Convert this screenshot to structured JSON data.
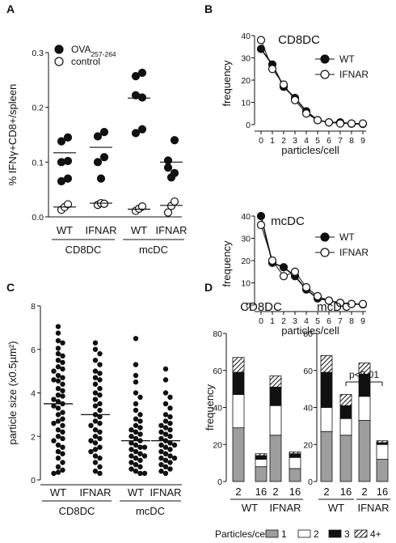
{
  "chart_data": [
    {
      "panel": "A",
      "type": "scatter",
      "ylabel": "% IFNγ+CD8+/spleen",
      "ylim": [
        0,
        0.3
      ],
      "yticks": [
        "0.0",
        "0.1",
        "0.2",
        "0.3"
      ],
      "legend": [
        {
          "name": "OVA",
          "sub": "257-264",
          "marker": "filled"
        },
        {
          "name": "control",
          "marker": "open"
        }
      ],
      "categories": [
        "WT",
        "IFNAR",
        "WT",
        "IFNAR"
      ],
      "groups": [
        "CD8DC",
        "mcDC"
      ],
      "series": [
        {
          "name": "OVA257-264",
          "marker": "filled",
          "points": [
            [
              [
                0.138,
                0.145
              ],
              [
                0.1,
                0.102
              ],
              [
                0.065,
                0.07
              ]
            ],
            [
              [
                0.147,
                0.155
              ],
              [
                0.1,
                0.109
              ],
              [
                0.07
              ]
            ],
            [
              [
                0.257,
                0.263
              ],
              [
                0.222,
                0.218
              ],
              [
                0.153,
                0.16
              ]
            ],
            [
              [
                0.103,
                0.14
              ],
              [
                0.09,
                0.08
              ],
              [
                0.072
              ]
            ]
          ]
        },
        {
          "name": "control",
          "marker": "open",
          "points": [
            [
              0.013,
              0.018,
              0.023
            ],
            [
              0.022,
              0.025,
              0.024
            ],
            [
              0.011,
              0.015,
              0.019
            ],
            [
              0.008,
              0.02,
              0.028
            ]
          ]
        }
      ],
      "means": [
        [
          0.117,
          0.018
        ],
        [
          0.127,
          0.025
        ],
        [
          0.217,
          0.014
        ],
        [
          0.1,
          0.021
        ]
      ]
    },
    {
      "panel": "B",
      "type": "line",
      "subplots": [
        {
          "title": "CD8DC",
          "xlabel": "particles/cell",
          "ylabel": "frequency",
          "ylim": [
            0,
            40
          ],
          "yticks": [
            "0",
            "10",
            "20",
            "30",
            "40"
          ],
          "x": [
            0,
            1,
            2,
            3,
            4,
            5,
            6,
            7,
            8,
            9
          ],
          "series": [
            {
              "name": "WT",
              "marker": "filled",
              "values": [
                34,
                27,
                17,
                12,
                6,
                2,
                1,
                1,
                0.4,
                0.3
              ]
            },
            {
              "name": "IFNAR",
              "marker": "open",
              "values": [
                38,
                25,
                18,
                11,
                5,
                2,
                1,
                0.5,
                0.5,
                0.5
              ]
            }
          ]
        },
        {
          "title": "mcDC",
          "xlabel": "particles/cell",
          "ylabel": "frequency",
          "ylim": [
            0,
            40
          ],
          "yticks": [
            "0",
            "10",
            "20",
            "30",
            "40"
          ],
          "x": [
            0,
            1,
            2,
            3,
            4,
            5,
            6,
            7,
            8,
            9
          ],
          "series": [
            {
              "name": "WT",
              "marker": "filled",
              "values": [
                40,
                19,
                17,
                13,
                7,
                3,
                2,
                1,
                0.5,
                0.3
              ]
            },
            {
              "name": "IFNAR",
              "marker": "open",
              "values": [
                36,
                20,
                13,
                15,
                8,
                4,
                2,
                1,
                0.5,
                0.5
              ]
            }
          ]
        }
      ]
    },
    {
      "panel": "C",
      "type": "scatter",
      "ylabel": "particle size (x0.5µm²)",
      "ylim": [
        0,
        8
      ],
      "yticks": [
        "0",
        "2",
        "4",
        "6",
        "8"
      ],
      "categories": [
        "WT",
        "IFNAR",
        "WT",
        "IFNAR"
      ],
      "groups": [
        "CD8DC",
        "mcDC"
      ],
      "means": [
        3.5,
        3.0,
        1.8,
        1.8
      ],
      "points": [
        [
          7.05,
          6.75,
          6.4,
          6.3,
          6.05,
          5.8,
          5.7,
          5.5,
          5.4,
          5.2,
          5.1,
          5.0,
          4.8,
          4.7,
          4.6,
          4.55,
          4.4,
          4.2,
          4.1,
          3.9,
          3.85,
          3.7,
          3.6,
          3.5,
          3.4,
          3.3,
          3.1,
          3.0,
          2.8,
          2.7,
          2.6,
          2.5,
          2.3,
          2.2,
          2.0,
          1.9,
          1.8,
          1.6,
          1.5,
          1.3,
          1.2,
          1.0,
          0.8,
          0.6,
          0.45,
          0.35,
          0.3
        ],
        [
          6.3,
          6.0,
          5.8,
          5.5,
          5.3,
          5.0,
          4.9,
          4.7,
          4.6,
          4.4,
          4.2,
          4.0,
          3.9,
          3.7,
          3.5,
          3.4,
          3.2,
          3.0,
          2.9,
          2.7,
          2.6,
          2.5,
          2.3,
          2.2,
          2.0,
          1.9,
          1.8,
          1.7,
          1.5,
          1.4,
          1.3,
          1.1,
          1.0,
          0.8,
          0.6,
          0.4,
          0.3
        ],
        [
          6.5,
          5.3,
          4.8,
          4.5,
          4.0,
          3.8,
          3.5,
          3.2,
          3.0,
          2.8,
          2.7,
          2.5,
          2.4,
          2.3,
          2.2,
          2.1,
          2.0,
          1.9,
          1.8,
          1.7,
          1.6,
          1.5,
          1.5,
          1.4,
          1.3,
          1.2,
          1.1,
          1.1,
          1.0,
          0.9,
          0.8,
          0.7,
          0.6,
          0.5,
          0.4,
          0.3,
          0.3
        ],
        [
          5.1,
          4.6,
          4.0,
          3.8,
          3.5,
          3.3,
          3.0,
          2.9,
          2.7,
          2.6,
          2.5,
          2.4,
          2.3,
          2.2,
          2.1,
          2.0,
          1.9,
          1.8,
          1.7,
          1.6,
          1.6,
          1.5,
          1.4,
          1.3,
          1.2,
          1.1,
          1.0,
          1.0,
          0.9,
          0.8,
          0.7,
          0.6,
          0.5,
          0.4,
          0.3
        ]
      ]
    },
    {
      "panel": "D",
      "type": "bar",
      "stacked": true,
      "ylabel": "frequency",
      "ylim": [
        0,
        80
      ],
      "yticks": [
        "0",
        "20",
        "40",
        "60",
        "80"
      ],
      "legend_title": "Particles/cell",
      "stack_labels": [
        "1",
        "2",
        "3",
        "4+"
      ],
      "subplots": [
        {
          "title": "CD8DC",
          "categories": [
            "2",
            "16",
            "2",
            "16"
          ],
          "groups": [
            "WT",
            "IFNAR"
          ],
          "stacks": [
            [
              29,
              18,
              12,
              8
            ],
            [
              8,
              4,
              2,
              1
            ],
            [
              25,
              16,
              10,
              6
            ],
            [
              7,
              6,
              2,
              1
            ]
          ]
        },
        {
          "title": "mcDC",
          "categories": [
            "2",
            "16",
            "2",
            "16"
          ],
          "groups": [
            "WT",
            "IFNAR"
          ],
          "annotation": "p<0.01",
          "stacks": [
            [
              27,
              13,
              19,
              9
            ],
            [
              25,
              9,
              7,
              6
            ],
            [
              33,
              13,
              12,
              6
            ],
            [
              12,
              8,
              1,
              1
            ]
          ]
        }
      ]
    }
  ],
  "colors": {
    "fill1": "#9e9e9e",
    "fill2": "#ffffff",
    "fill3": "#111111",
    "line": "#111111"
  }
}
